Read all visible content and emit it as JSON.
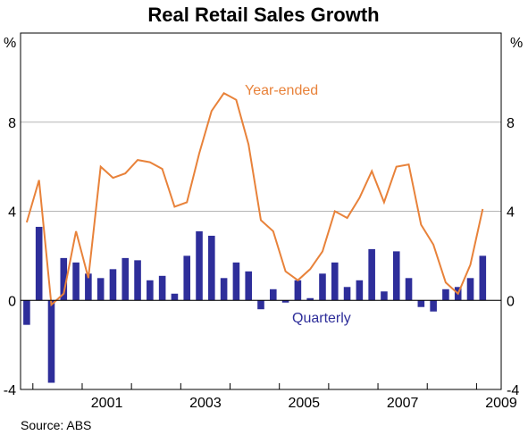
{
  "chart_data": {
    "type": "bar",
    "title": "Real Retail Sales Growth",
    "y_unit_left": "%",
    "y_unit_right": "%",
    "ylim": [
      -4,
      12
    ],
    "yticks": [
      -4,
      0,
      4,
      8
    ],
    "x_tick_labels": [
      "2001",
      "2003",
      "2005",
      "2007",
      "2009"
    ],
    "x_tick_years": [
      2001,
      2003,
      2005,
      2007,
      2009
    ],
    "quarters": [
      "1999-Q4",
      "2000-Q1",
      "2000-Q2",
      "2000-Q3",
      "2000-Q4",
      "2001-Q1",
      "2001-Q2",
      "2001-Q3",
      "2001-Q4",
      "2002-Q1",
      "2002-Q2",
      "2002-Q3",
      "2002-Q4",
      "2003-Q1",
      "2003-Q2",
      "2003-Q3",
      "2003-Q4",
      "2004-Q1",
      "2004-Q2",
      "2004-Q3",
      "2004-Q4",
      "2005-Q1",
      "2005-Q2",
      "2005-Q3",
      "2005-Q4",
      "2006-Q1",
      "2006-Q2",
      "2006-Q3",
      "2006-Q4",
      "2007-Q1",
      "2007-Q2",
      "2007-Q3",
      "2007-Q4",
      "2008-Q1",
      "2008-Q2",
      "2008-Q3",
      "2008-Q4",
      "2009-Q1",
      "2009-Q2"
    ],
    "series": [
      {
        "name": "Quarterly",
        "type": "bar",
        "color": "#2e2e9a",
        "values": [
          -1.1,
          3.3,
          -3.7,
          1.9,
          1.7,
          1.2,
          1.0,
          1.4,
          1.9,
          1.8,
          0.9,
          1.1,
          0.3,
          2.0,
          3.1,
          2.9,
          1.0,
          1.7,
          1.3,
          -0.4,
          0.5,
          -0.1,
          0.9,
          0.1,
          1.2,
          1.7,
          0.6,
          0.9,
          2.3,
          0.4,
          2.2,
          1.0,
          -0.3,
          -0.5,
          0.5,
          0.6,
          1.0,
          2.0,
          null
        ]
      },
      {
        "name": "Year-ended",
        "type": "line",
        "color": "#e8823a",
        "values": [
          3.5,
          5.4,
          -0.2,
          0.3,
          3.1,
          1.0,
          6.0,
          5.5,
          5.7,
          6.3,
          6.2,
          5.9,
          4.2,
          4.4,
          6.6,
          8.5,
          9.3,
          9.0,
          7.0,
          3.6,
          3.1,
          1.3,
          0.9,
          1.4,
          2.2,
          4.0,
          3.7,
          4.6,
          5.8,
          4.4,
          6.0,
          6.1,
          3.4,
          2.5,
          0.8,
          0.3,
          1.6,
          4.1,
          null
        ]
      }
    ],
    "grid": "horizontal",
    "source": "Source: ABS"
  }
}
